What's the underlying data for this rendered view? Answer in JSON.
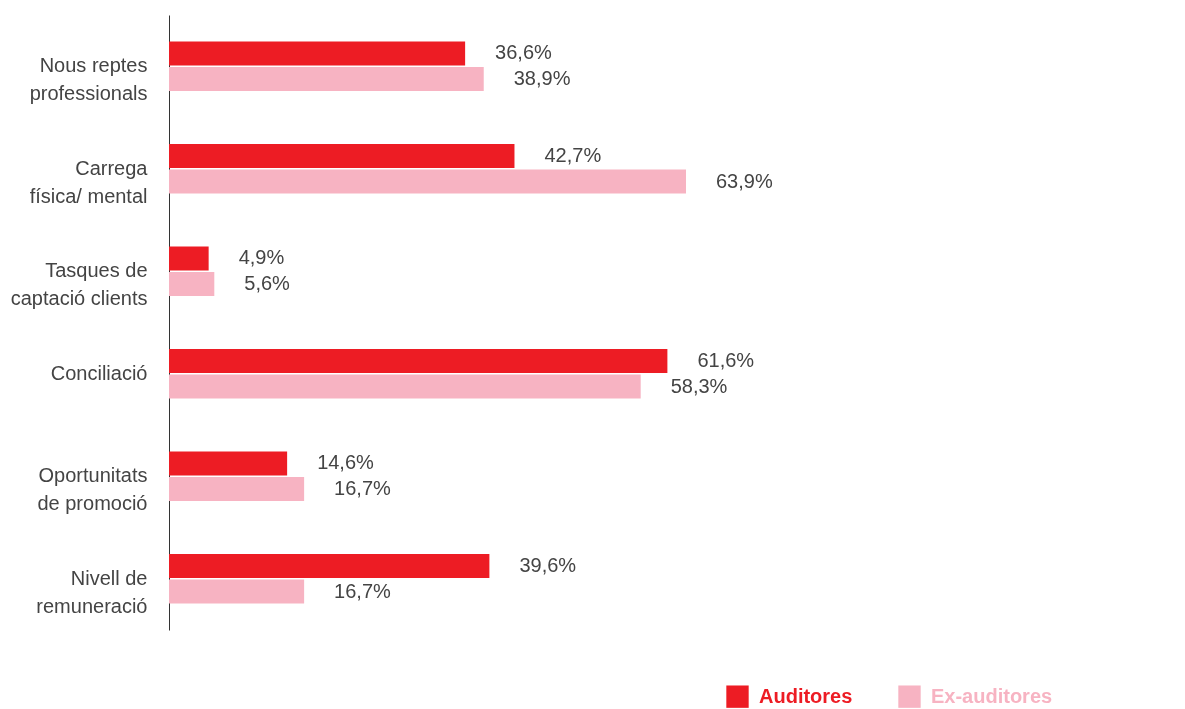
{
  "chart_data": {
    "type": "bar",
    "orientation": "horizontal",
    "categories": [
      "Nous reptes professionals",
      "Carrega física/ mental",
      "Tasques de captació clients",
      "Conciliació",
      "Oportunitats de promoció",
      "Nivell de remuneració"
    ],
    "series": [
      {
        "name": "Auditores",
        "color": "#ed1c24",
        "values": [
          36.6,
          42.7,
          4.9,
          61.6,
          14.6,
          39.6
        ],
        "value_labels": [
          "36,6%",
          "42,7%",
          "4,9%",
          "61,6%",
          "14,6%",
          "39,6%"
        ]
      },
      {
        "name": "Ex-auditores",
        "color": "#f7b3c2",
        "values": [
          38.9,
          63.9,
          5.6,
          58.3,
          16.7,
          16.7
        ],
        "value_labels": [
          "38,9%",
          "63,9%",
          "5,6%",
          "58,3%",
          "16,7%",
          "16,7%"
        ]
      }
    ],
    "legend": "bottom right",
    "grid": false
  }
}
